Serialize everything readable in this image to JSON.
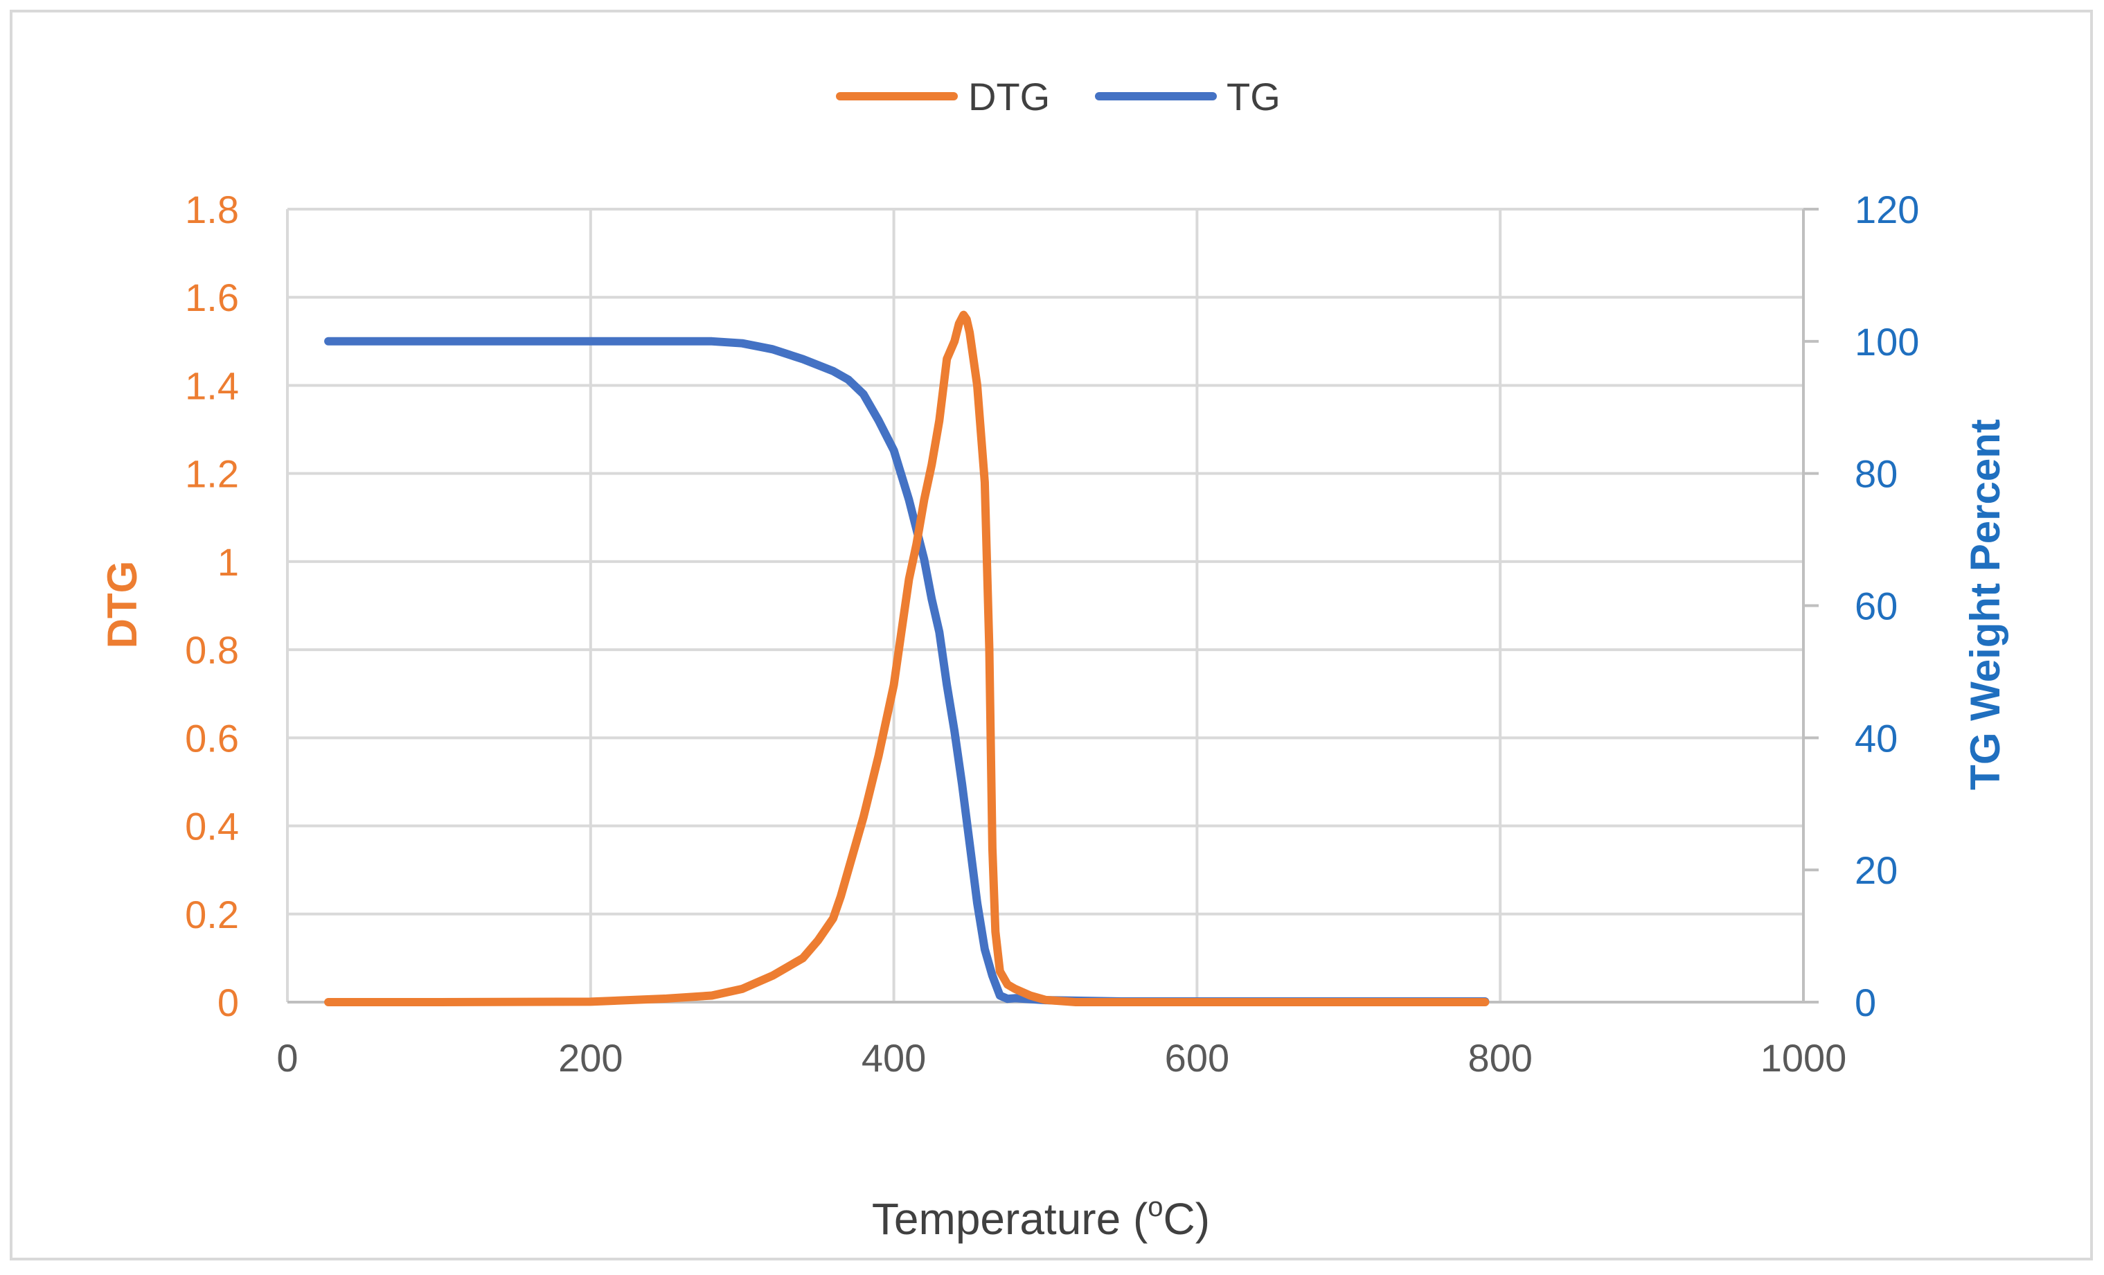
{
  "chart_data": {
    "type": "line",
    "title": "",
    "xlabel": "Temperature (",
    "xlabel_sup": "o",
    "xlabel_suffix": "C)",
    "ylabel_left": "DTG",
    "ylabel_right": "TG Weight Percent",
    "xlim": [
      0,
      1000
    ],
    "ylim_left": [
      0,
      1.8
    ],
    "ylim_right": [
      0,
      120
    ],
    "x_ticks": [
      "0",
      "200",
      "400",
      "600",
      "800",
      "1000"
    ],
    "y_left_ticks": [
      "0",
      "0.2",
      "0.4",
      "0.6",
      "0.8",
      "1",
      "1.2",
      "1.4",
      "1.6",
      "1.8"
    ],
    "y_right_ticks": [
      "0",
      "20",
      "40",
      "60",
      "80",
      "100",
      "120"
    ],
    "grid": true,
    "legend_position": "top-center",
    "colors": {
      "dtg": "#ED7D31",
      "tg": "#4472C4",
      "right_axis_text": "#1F6FBF",
      "grid": "#d9d9d9"
    },
    "series": [
      {
        "name": "DTG",
        "axis": "left",
        "x": [
          27,
          100,
          200,
          250,
          280,
          300,
          320,
          340,
          350,
          360,
          365,
          370,
          380,
          390,
          400,
          405,
          410,
          415,
          420,
          425,
          430,
          435,
          440,
          443,
          446,
          448,
          450,
          455,
          460,
          463,
          465,
          467,
          470,
          475,
          480,
          490,
          500,
          520,
          600,
          700,
          790
        ],
        "values": [
          0.0,
          0.0,
          0.001,
          0.008,
          0.015,
          0.03,
          0.06,
          0.1,
          0.14,
          0.19,
          0.24,
          0.3,
          0.42,
          0.56,
          0.72,
          0.84,
          0.96,
          1.04,
          1.14,
          1.22,
          1.32,
          1.46,
          1.5,
          1.54,
          1.56,
          1.55,
          1.52,
          1.4,
          1.18,
          0.8,
          0.35,
          0.16,
          0.07,
          0.04,
          0.03,
          0.015,
          0.005,
          0.0,
          0.0,
          0.0,
          0.0
        ]
      },
      {
        "name": "TG",
        "axis": "right",
        "x": [
          27,
          100,
          200,
          280,
          300,
          320,
          340,
          360,
          370,
          380,
          390,
          400,
          410,
          420,
          425,
          430,
          435,
          440,
          445,
          450,
          455,
          460,
          465,
          470,
          475,
          480,
          500,
          550,
          600,
          700,
          790
        ],
        "values": [
          100,
          100,
          100,
          100,
          99.7,
          98.8,
          97.3,
          95.5,
          94.2,
          92,
          88,
          83.5,
          76,
          67,
          61,
          56,
          48,
          41,
          33,
          24,
          15,
          8,
          4,
          1,
          0.5,
          0.6,
          0.3,
          0.1,
          0.1,
          0.1,
          0.1
        ]
      }
    ]
  }
}
